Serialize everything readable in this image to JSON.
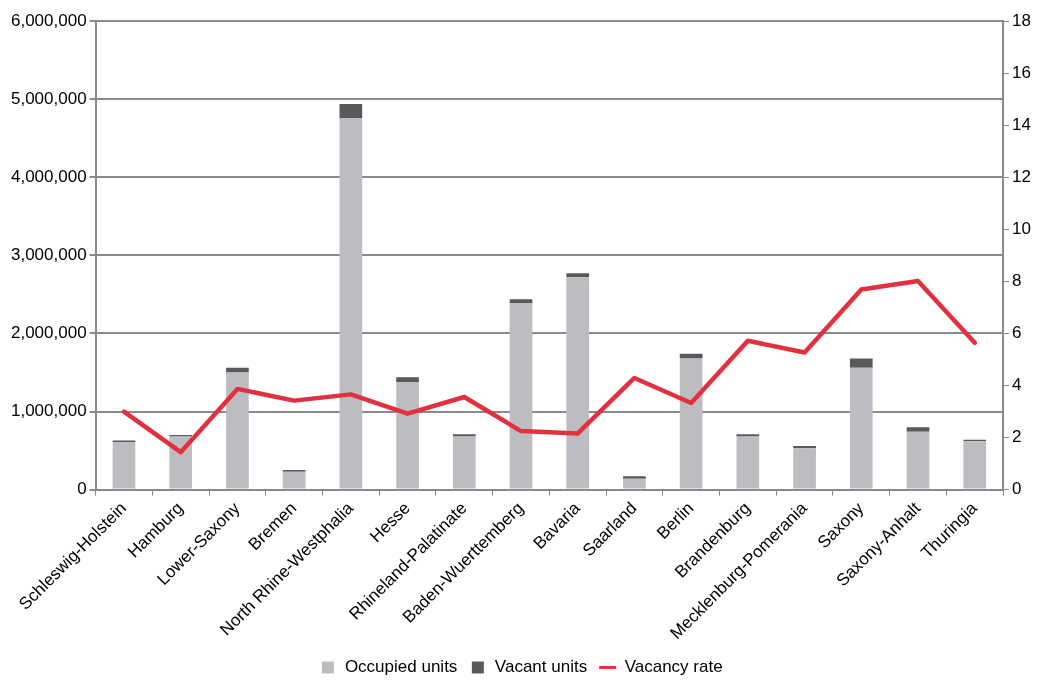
{
  "chart_data": {
    "type": "bar",
    "stacked": true,
    "categories": [
      "Schleswig-Holstein",
      "Hamburg",
      "Lower-Saxony",
      "Bremen",
      "North Rhine-Westphalia",
      "Hesse",
      "Rhineland-Palatinate",
      "Baden-Wuerttemberg",
      "Bavaria",
      "Saarland",
      "Berlin",
      "Brandenburg",
      "Mecklenburg-Pomerania",
      "Saxony",
      "Saxony-Anhalt",
      "Thuringia"
    ],
    "series": [
      {
        "name": "Occupied units",
        "color": "#bcbdc0",
        "values": [
          610000,
          680000,
          1500000,
          230000,
          4760000,
          1380000,
          680000,
          2390000,
          2720000,
          140000,
          1680000,
          680000,
          530000,
          1560000,
          740000,
          620000
        ]
      },
      {
        "name": "Vacant units",
        "color": "#58595b",
        "values": [
          20000,
          20000,
          60000,
          20000,
          180000,
          60000,
          30000,
          50000,
          50000,
          30000,
          60000,
          30000,
          30000,
          120000,
          60000,
          20000
        ]
      },
      {
        "name": "Vacancy rate",
        "type": "line",
        "axis": "y2",
        "color": "#e3303f",
        "values": [
          3.0,
          1.44,
          3.87,
          3.42,
          3.66,
          2.92,
          3.56,
          2.25,
          2.16,
          4.29,
          3.33,
          5.72,
          5.27,
          7.69,
          8.02,
          5.64
        ]
      }
    ],
    "ylim": [
      0,
      6000000
    ],
    "yticks": [
      0,
      {
        "value": 1000000,
        "label": "1,000,000"
      },
      {
        "value": 2000000,
        "label": "2,000,000"
      },
      {
        "value": 3000000,
        "label": "3,000,000"
      },
      {
        "value": 4000000,
        "label": "4,000,000"
      },
      {
        "value": 5000000,
        "label": "5,000,000"
      },
      {
        "value": 6000000,
        "label": "6,000,000"
      }
    ],
    "y2lim": [
      0,
      18
    ],
    "y2ticks": [
      0,
      2,
      4,
      6,
      8,
      10,
      12,
      14,
      16,
      18
    ],
    "grid": "y",
    "legend": "bottom",
    "marker": "none",
    "line_style": "solid"
  }
}
